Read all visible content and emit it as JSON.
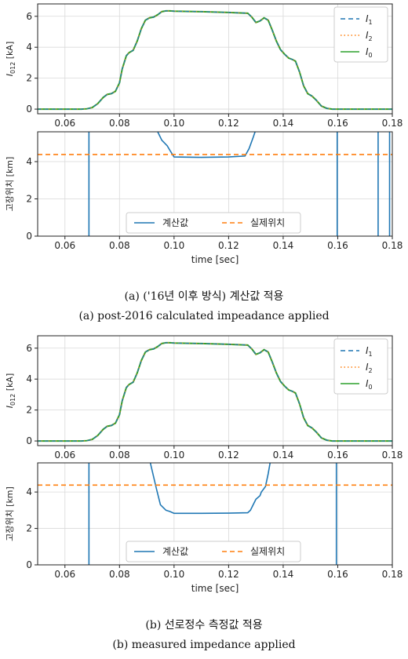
{
  "chart_data": [
    {
      "type": "line",
      "ylabel": "I012 [kA]",
      "ylabel_main": "I",
      "ylabel_sub": "012",
      "ylabel_unit": " [kA]",
      "xlim": [
        0.05,
        0.18
      ],
      "ylim": [
        -0.3,
        6.8
      ],
      "yticks": [
        0,
        2,
        4,
        6
      ],
      "xticks": [
        0.06,
        0.08,
        0.1,
        0.12,
        0.14,
        0.16,
        0.18
      ],
      "xtick_labels": [
        "0.06",
        "0.08",
        "0.10",
        "0.12",
        "0.14",
        "0.16",
        "0.18"
      ],
      "grid": true,
      "legend_position": "top-right",
      "legend": [
        {
          "main": "I",
          "sub": "1",
          "color": "#1f77b4",
          "dash": "dashed"
        },
        {
          "main": "I",
          "sub": "2",
          "color": "#ff7f0e",
          "dash": "dotted"
        },
        {
          "main": "I",
          "sub": "0",
          "color": "#2ca02c",
          "dash": "solid"
        }
      ],
      "series": [
        {
          "x": [
            0.05,
            0.066,
            0.068,
            0.07,
            0.072,
            0.074,
            0.0755,
            0.077,
            0.0785,
            0.08,
            0.081,
            0.0825,
            0.0835,
            0.085,
            0.0865,
            0.088,
            0.0895,
            0.091,
            0.0925,
            0.094,
            0.0955,
            0.097,
            0.0985,
            0.1,
            0.11,
            0.12,
            0.127,
            0.1285,
            0.13,
            0.1315,
            0.133,
            0.1345,
            0.136,
            0.1375,
            0.139,
            0.1405,
            0.142,
            0.1435,
            0.1445,
            0.146,
            0.1475,
            0.149,
            0.1505,
            0.152,
            0.154,
            0.156,
            0.158,
            0.18
          ],
          "y": [
            0,
            0,
            0.02,
            0.1,
            0.35,
            0.75,
            0.95,
            1.0,
            1.15,
            1.7,
            2.6,
            3.45,
            3.65,
            3.8,
            4.4,
            5.2,
            5.75,
            5.9,
            5.95,
            6.1,
            6.3,
            6.35,
            6.35,
            6.33,
            6.3,
            6.25,
            6.2,
            5.95,
            5.6,
            5.7,
            5.9,
            5.75,
            5.1,
            4.4,
            3.85,
            3.55,
            3.3,
            3.2,
            3.1,
            2.4,
            1.5,
            1.0,
            0.85,
            0.6,
            0.2,
            0.05,
            0,
            0
          ]
        }
      ]
    },
    {
      "type": "line",
      "ylabel": "고장위치 [km]",
      "xlabel": "time [sec]",
      "xlim": [
        0.05,
        0.18
      ],
      "ylim": [
        0,
        5.6
      ],
      "yticks": [
        0,
        2,
        4
      ],
      "xticks": [
        0.06,
        0.08,
        0.1,
        0.12,
        0.14,
        0.16,
        0.18
      ],
      "xtick_labels": [
        "0.06",
        "0.08",
        "0.10",
        "0.12",
        "0.14",
        "0.16",
        "0.18"
      ],
      "grid": true,
      "legend_position": "bottom-center",
      "legend": [
        {
          "name": "계산값",
          "color": "#1f77b4",
          "dash": "solid"
        },
        {
          "name": "실제위치",
          "color": "#ff7f0e",
          "dash": "dashed"
        }
      ],
      "series": [
        {
          "name": "계산값",
          "segments": [
            [
              [
                0.0688,
                0
              ],
              [
                0.0688,
                5.6
              ]
            ],
            [
              [
                0.094,
                5.6
              ],
              [
                0.0955,
                5.15
              ],
              [
                0.0975,
                4.85
              ],
              [
                0.0985,
                4.6
              ],
              [
                0.1,
                4.25
              ],
              [
                0.11,
                4.23
              ],
              [
                0.12,
                4.25
              ],
              [
                0.126,
                4.3
              ],
              [
                0.1275,
                4.7
              ],
              [
                0.129,
                5.3
              ],
              [
                0.1297,
                5.6
              ]
            ],
            [
              [
                0.1598,
                5.6
              ],
              [
                0.1598,
                0
              ]
            ],
            [
              [
                0.1748,
                0
              ],
              [
                0.1748,
                5.6
              ]
            ],
            [
              [
                0.179,
                5.6
              ],
              [
                0.179,
                0
              ]
            ]
          ]
        },
        {
          "name": "실제위치",
          "x": [
            0.05,
            0.18
          ],
          "y": [
            4.38,
            4.38
          ]
        }
      ]
    },
    {
      "type": "line",
      "ylabel": "I012 [kA]",
      "ylabel_main": "I",
      "ylabel_sub": "012",
      "ylabel_unit": " [kA]",
      "xlim": [
        0.05,
        0.18
      ],
      "ylim": [
        -0.3,
        6.8
      ],
      "yticks": [
        0,
        2,
        4,
        6
      ],
      "xticks": [
        0.06,
        0.08,
        0.1,
        0.12,
        0.14,
        0.16,
        0.18
      ],
      "xtick_labels": [
        "0.06",
        "0.08",
        "0.10",
        "0.12",
        "0.14",
        "0.16",
        "0.18"
      ],
      "grid": true,
      "legend_position": "top-right",
      "legend": [
        {
          "main": "I",
          "sub": "1",
          "color": "#1f77b4",
          "dash": "dashed"
        },
        {
          "main": "I",
          "sub": "2",
          "color": "#ff7f0e",
          "dash": "dotted"
        },
        {
          "main": "I",
          "sub": "0",
          "color": "#2ca02c",
          "dash": "solid"
        }
      ],
      "series": [
        {
          "x": [
            0.05,
            0.066,
            0.068,
            0.07,
            0.072,
            0.074,
            0.0755,
            0.077,
            0.0785,
            0.08,
            0.081,
            0.0825,
            0.0835,
            0.085,
            0.0865,
            0.088,
            0.0895,
            0.091,
            0.0925,
            0.094,
            0.0955,
            0.097,
            0.0985,
            0.1,
            0.11,
            0.12,
            0.127,
            0.1285,
            0.13,
            0.1315,
            0.133,
            0.1345,
            0.136,
            0.1375,
            0.139,
            0.1405,
            0.142,
            0.1435,
            0.1445,
            0.146,
            0.1475,
            0.149,
            0.1505,
            0.152,
            0.154,
            0.156,
            0.158,
            0.18
          ],
          "y": [
            0,
            0,
            0.02,
            0.1,
            0.35,
            0.75,
            0.95,
            1.0,
            1.15,
            1.7,
            2.6,
            3.45,
            3.65,
            3.8,
            4.4,
            5.2,
            5.75,
            5.9,
            5.95,
            6.1,
            6.3,
            6.35,
            6.35,
            6.33,
            6.3,
            6.25,
            6.2,
            5.95,
            5.6,
            5.7,
            5.9,
            5.75,
            5.1,
            4.4,
            3.85,
            3.55,
            3.3,
            3.2,
            3.1,
            2.4,
            1.5,
            1.0,
            0.85,
            0.6,
            0.2,
            0.05,
            0,
            0
          ]
        }
      ]
    },
    {
      "type": "line",
      "ylabel": "고장위치 [km]",
      "xlabel": "time [sec]",
      "xlim": [
        0.05,
        0.18
      ],
      "ylim": [
        0,
        5.6
      ],
      "yticks": [
        0,
        2,
        4
      ],
      "xticks": [
        0.06,
        0.08,
        0.1,
        0.12,
        0.14,
        0.16,
        0.18
      ],
      "xtick_labels": [
        "0.06",
        "0.08",
        "0.10",
        "0.12",
        "0.14",
        "0.16",
        "0.18"
      ],
      "grid": true,
      "legend_position": "bottom-center",
      "legend": [
        {
          "name": "계산값",
          "color": "#1f77b4",
          "dash": "solid"
        },
        {
          "name": "실제위치",
          "color": "#ff7f0e",
          "dash": "dashed"
        }
      ],
      "series": [
        {
          "name": "계산값",
          "segments": [
            [
              [
                0.0688,
                0
              ],
              [
                0.0688,
                5.6
              ]
            ],
            [
              [
                0.0913,
                5.6
              ],
              [
                0.0935,
                4.2
              ],
              [
                0.095,
                3.3
              ],
              [
                0.097,
                3.0
              ],
              [
                0.0985,
                2.93
              ],
              [
                0.1,
                2.83
              ],
              [
                0.11,
                2.83
              ],
              [
                0.12,
                2.84
              ],
              [
                0.127,
                2.86
              ],
              [
                0.128,
                3.0
              ],
              [
                0.13,
                3.6
              ],
              [
                0.1315,
                3.8
              ],
              [
                0.132,
                4.0
              ],
              [
                0.1335,
                4.3
              ],
              [
                0.1345,
                5.0
              ],
              [
                0.1352,
                5.6
              ]
            ],
            [
              [
                0.1595,
                5.6
              ],
              [
                0.1595,
                0
              ]
            ]
          ]
        },
        {
          "name": "실제위치",
          "x": [
            0.05,
            0.18
          ],
          "y": [
            4.38,
            4.38
          ]
        }
      ]
    }
  ],
  "captions": {
    "a_kr": "(a) ('16년 이후 방식) 계산값 적용",
    "a_en": "(a) post-2016 calculated impeadance applied",
    "b_kr": "(b) 선로정수 측정값 적용",
    "b_en": "(b) measured impedance applied"
  }
}
